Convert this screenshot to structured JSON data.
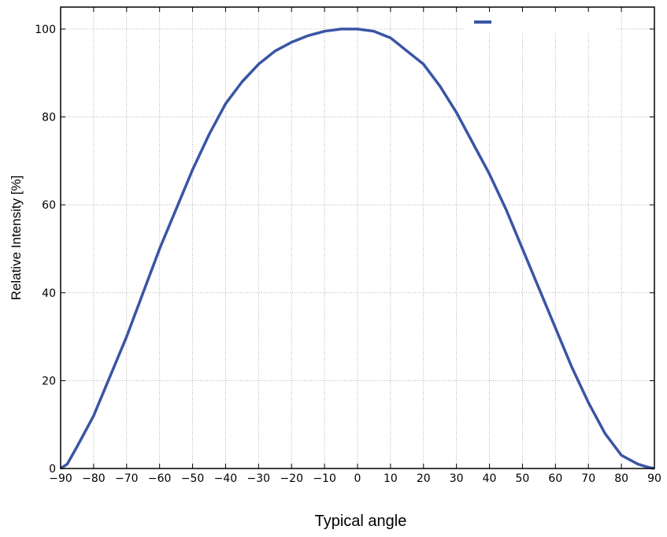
{
  "chart_data": {
    "type": "line",
    "title": "",
    "xlabel": "Typical angle",
    "ylabel": "Relative Intensity [%]",
    "xlim": [
      -90,
      90
    ],
    "ylim": [
      0,
      105
    ],
    "x_ticks": [
      -90,
      -80,
      -70,
      -60,
      -50,
      -40,
      -30,
      -20,
      -10,
      0,
      10,
      20,
      30,
      40,
      50,
      60,
      70,
      80,
      90
    ],
    "x_tick_labels": [
      "−90",
      "−80",
      "−70",
      "−60",
      "−50",
      "−40",
      "−30",
      "−20",
      "−10",
      "0",
      "10",
      "20",
      "30",
      "40",
      "50",
      "60",
      "70",
      "80",
      "90"
    ],
    "y_ticks": [
      0,
      20,
      40,
      60,
      80,
      100
    ],
    "y_tick_labels": [
      "0",
      "20",
      "40",
      "60",
      "80",
      "100"
    ],
    "grid": "dotted",
    "legend": "top-right",
    "line_color": "#3a55a4",
    "series": [
      {
        "x": [
          -90,
          -88,
          -85,
          -80,
          -75,
          -70,
          -65,
          -60,
          -55,
          -50,
          -45,
          -40,
          -35,
          -30,
          -25,
          -20,
          -15,
          -10,
          -5,
          0,
          5,
          10,
          15,
          20,
          25,
          30,
          35,
          40,
          45,
          50,
          55,
          60,
          65,
          70,
          75,
          80,
          85,
          88,
          90
        ],
        "values": [
          0,
          1,
          5,
          12,
          21,
          30,
          40,
          50,
          59,
          68,
          76,
          83,
          88,
          92,
          95,
          97,
          98.5,
          99.5,
          100,
          100,
          99.5,
          98,
          95,
          92,
          87,
          81,
          74,
          67,
          59,
          50,
          41,
          32,
          23,
          15,
          8,
          3,
          1,
          0.3,
          0
        ]
      }
    ]
  }
}
